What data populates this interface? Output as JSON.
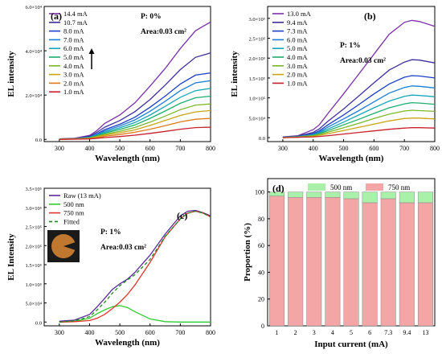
{
  "chart_data": [
    {
      "type": "line",
      "panel": "(a)",
      "annotations": [
        "P: 0%",
        "Area:0.03 cm²"
      ],
      "arrow": "up",
      "xlabel": "Wavelength (nm)",
      "ylabel": "EL intensity",
      "xlim": [
        250,
        800
      ],
      "ylim": [
        -0.1,
        6.0
      ],
      "x_ticks": [
        "300",
        "400",
        "500",
        "600",
        "700",
        "800"
      ],
      "y_ticks": [
        "0.0",
        "2.0×10⁴",
        "4.0×10⁴",
        "6.0×10⁴"
      ],
      "legend_position": "top-left",
      "x": [
        300,
        350,
        400,
        420,
        450,
        500,
        550,
        600,
        650,
        700,
        750,
        800
      ],
      "series": [
        {
          "name": "14.4 mA",
          "color": "#7b2fa8",
          "values": [
            0.02,
            0.05,
            0.18,
            0.35,
            0.72,
            1.1,
            1.65,
            2.4,
            3.2,
            4.1,
            4.9,
            5.3
          ]
        },
        {
          "name": "10.7 mA",
          "color": "#3d2f9e",
          "values": [
            0.02,
            0.04,
            0.14,
            0.28,
            0.55,
            0.85,
            1.25,
            1.8,
            2.45,
            3.15,
            3.7,
            3.9
          ]
        },
        {
          "name": "8.0 mA",
          "color": "#1a3fc4",
          "values": [
            0.01,
            0.03,
            0.11,
            0.22,
            0.44,
            0.68,
            1.0,
            1.45,
            1.95,
            2.5,
            2.9,
            3.0
          ]
        },
        {
          "name": "7.0 mA",
          "color": "#1a7fd4",
          "values": [
            0.01,
            0.03,
            0.1,
            0.2,
            0.38,
            0.6,
            0.88,
            1.27,
            1.72,
            2.2,
            2.55,
            2.65
          ]
        },
        {
          "name": "6.0 mA",
          "color": "#17a6b8",
          "values": [
            0.01,
            0.03,
            0.09,
            0.17,
            0.33,
            0.52,
            0.76,
            1.1,
            1.49,
            1.9,
            2.2,
            2.3
          ]
        },
        {
          "name": "5.0 mA",
          "color": "#1cae70",
          "values": [
            0.01,
            0.02,
            0.08,
            0.15,
            0.28,
            0.45,
            0.65,
            0.95,
            1.28,
            1.63,
            1.88,
            1.95
          ]
        },
        {
          "name": "4.0 mA",
          "color": "#7ab82a",
          "values": [
            0.01,
            0.02,
            0.06,
            0.12,
            0.23,
            0.37,
            0.54,
            0.78,
            1.05,
            1.34,
            1.55,
            1.6
          ]
        },
        {
          "name": "3.0 mA",
          "color": "#c9a515",
          "values": [
            0.01,
            0.02,
            0.05,
            0.1,
            0.19,
            0.3,
            0.43,
            0.63,
            0.85,
            1.08,
            1.24,
            1.3
          ]
        },
        {
          "name": "2.0 mA",
          "color": "#e07a17",
          "values": [
            0.0,
            0.01,
            0.04,
            0.07,
            0.14,
            0.22,
            0.32,
            0.46,
            0.62,
            0.79,
            0.91,
            0.95
          ]
        },
        {
          "name": "1.0 mA",
          "color": "#c8202a",
          "values": [
            0.0,
            0.01,
            0.02,
            0.04,
            0.08,
            0.13,
            0.19,
            0.27,
            0.36,
            0.46,
            0.53,
            0.55
          ]
        }
      ]
    },
    {
      "type": "line",
      "panel": "(b)",
      "annotations": [
        "P: 1%",
        "Area:0.03 cm²"
      ],
      "xlabel": "Wavelength (nm)",
      "ylabel": "EL intensity",
      "xlim": [
        250,
        800
      ],
      "ylim": [
        -0.1,
        3.3
      ],
      "x_ticks": [
        "300",
        "400",
        "500",
        "600",
        "700",
        "800"
      ],
      "y_ticks": [
        "0.0",
        "5.0×10⁴",
        "1.0×10⁵",
        "1.5×10⁵",
        "2.0×10⁵",
        "2.5×10⁵",
        "3.0×10⁵"
      ],
      "y_tick_values": [
        0,
        0.5,
        1.0,
        1.5,
        2.0,
        2.5,
        3.0
      ],
      "legend_position": "top-left",
      "x": [
        300,
        350,
        400,
        420,
        450,
        500,
        550,
        600,
        650,
        700,
        725,
        750,
        800
      ],
      "series": [
        {
          "name": "13.0 mA",
          "color": "#7b2fa8",
          "values": [
            0.02,
            0.05,
            0.2,
            0.32,
            0.62,
            1.1,
            1.6,
            2.1,
            2.6,
            2.9,
            2.95,
            2.92,
            2.8
          ]
        },
        {
          "name": "9.4 mA",
          "color": "#3d2f9e",
          "values": [
            0.01,
            0.04,
            0.13,
            0.22,
            0.42,
            0.72,
            1.05,
            1.38,
            1.7,
            1.9,
            1.96,
            1.95,
            1.88
          ]
        },
        {
          "name": "7.3 mA",
          "color": "#1a3fc4",
          "values": [
            0.01,
            0.03,
            0.1,
            0.17,
            0.33,
            0.57,
            0.83,
            1.1,
            1.35,
            1.52,
            1.56,
            1.55,
            1.5
          ]
        },
        {
          "name": "6.0 mA",
          "color": "#1a7fd4",
          "values": [
            0.01,
            0.03,
            0.08,
            0.14,
            0.27,
            0.47,
            0.68,
            0.9,
            1.12,
            1.26,
            1.3,
            1.29,
            1.25
          ]
        },
        {
          "name": "5.0 mA",
          "color": "#17a6b8",
          "values": [
            0.01,
            0.02,
            0.07,
            0.12,
            0.22,
            0.39,
            0.57,
            0.75,
            0.92,
            1.04,
            1.07,
            1.06,
            1.03
          ]
        },
        {
          "name": "4.0 mA",
          "color": "#1cae70",
          "values": [
            0.01,
            0.02,
            0.06,
            0.1,
            0.18,
            0.32,
            0.46,
            0.61,
            0.75,
            0.85,
            0.88,
            0.87,
            0.84
          ]
        },
        {
          "name": "3.0 mA",
          "color": "#7ab82a",
          "values": [
            0.0,
            0.02,
            0.05,
            0.08,
            0.14,
            0.25,
            0.36,
            0.48,
            0.59,
            0.67,
            0.69,
            0.68,
            0.66
          ]
        },
        {
          "name": "2.0 mA",
          "color": "#c9a515",
          "values": [
            0.0,
            0.01,
            0.03,
            0.06,
            0.1,
            0.18,
            0.26,
            0.34,
            0.42,
            0.48,
            0.49,
            0.49,
            0.47
          ]
        },
        {
          "name": "1.0 mA",
          "color": "#c8202a",
          "values": [
            0.0,
            0.01,
            0.02,
            0.03,
            0.05,
            0.09,
            0.13,
            0.17,
            0.21,
            0.24,
            0.25,
            0.25,
            0.24
          ]
        }
      ]
    },
    {
      "type": "line",
      "panel": "(c)",
      "annotations": [
        "P: 1%",
        "Area:0.03 cm²"
      ],
      "xlabel": "Wavelength (nm)",
      "ylabel": "EL Intensity",
      "xlim": [
        250,
        800
      ],
      "ylim": [
        -0.1,
        3.5
      ],
      "x_ticks": [
        "300",
        "400",
        "500",
        "600",
        "700",
        "800"
      ],
      "y_ticks": [
        "0.0",
        "5.0×10⁴",
        "1.0×10⁵",
        "1.5×10⁵",
        "2.0×10⁵",
        "2.5×10⁵",
        "3.0×10⁵",
        "3.5×10⁵"
      ],
      "y_tick_values": [
        0,
        0.5,
        1.0,
        1.5,
        2.0,
        2.5,
        3.0,
        3.5
      ],
      "legend_position": "top-left",
      "x": [
        300,
        350,
        400,
        425,
        450,
        475,
        500,
        525,
        550,
        600,
        650,
        700,
        725,
        750,
        775,
        800
      ],
      "series": [
        {
          "name": "Raw (13 mA)",
          "color": "#5a2a9a",
          "dash": "",
          "values": [
            0.02,
            0.05,
            0.2,
            0.4,
            0.62,
            0.85,
            1.0,
            1.12,
            1.3,
            1.75,
            2.3,
            2.78,
            2.9,
            2.92,
            2.86,
            2.78
          ]
        },
        {
          "name": "500 nm",
          "color": "#2ecc2e",
          "dash": "",
          "values": [
            0.0,
            0.02,
            0.1,
            0.22,
            0.32,
            0.4,
            0.43,
            0.38,
            0.27,
            0.08,
            0.01,
            0.0,
            0.0,
            0.0,
            0.0,
            0.0
          ]
        },
        {
          "name": "750 nm",
          "color": "#e0352b",
          "dash": "",
          "values": [
            0.0,
            0.01,
            0.04,
            0.1,
            0.2,
            0.35,
            0.52,
            0.72,
            0.97,
            1.56,
            2.23,
            2.7,
            2.85,
            2.9,
            2.85,
            2.75
          ]
        },
        {
          "name": "Fitted",
          "color": "#1c8a1c",
          "dash": "4,3",
          "values": [
            0.0,
            0.03,
            0.14,
            0.32,
            0.52,
            0.75,
            0.95,
            1.1,
            1.24,
            1.64,
            2.24,
            2.7,
            2.85,
            2.9,
            2.85,
            2.75
          ]
        }
      ]
    },
    {
      "type": "bar",
      "stacked": true,
      "panel": "(d)",
      "xlabel": "Input current (mA)",
      "ylabel": "Proportion (%)",
      "ylim": [
        0,
        110
      ],
      "y_ticks": [
        "0",
        "20",
        "40",
        "60",
        "80",
        "100"
      ],
      "legend_position": "top-center",
      "categories": [
        "1",
        "2",
        "3",
        "4",
        "5",
        "6",
        "7.3",
        "9.4",
        "13"
      ],
      "series": [
        {
          "name": "750 nm",
          "color": "#f4a6a6",
          "values": [
            97,
            96,
            96,
            96,
            95,
            92,
            95,
            92,
            92
          ]
        },
        {
          "name": "500 nm",
          "color": "#a9f0a9",
          "values": [
            3,
            4,
            4,
            4,
            5,
            8,
            5,
            8,
            8
          ]
        }
      ]
    }
  ],
  "inset_icon": "sample-photo-icon"
}
